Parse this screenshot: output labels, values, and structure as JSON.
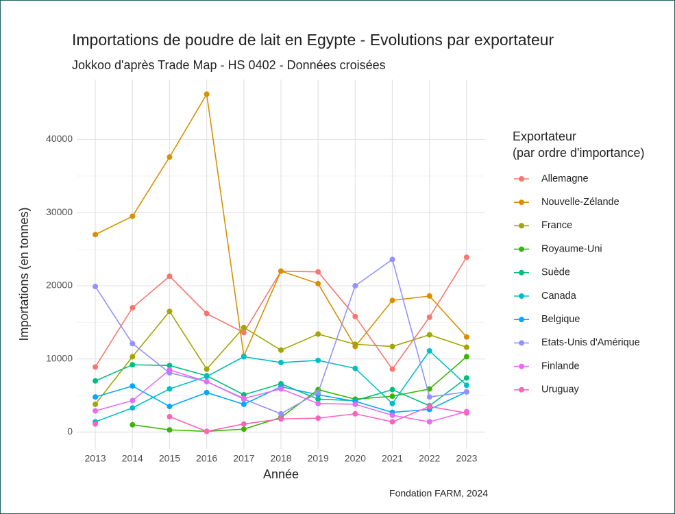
{
  "chart_data": {
    "type": "line",
    "title": "Importations de poudre de lait en Egypte - Evolutions par exportateur",
    "subtitle": "Jokkoo d'après Trade Map - HS 0402 - Données croisées",
    "x_label": "Année",
    "y_label": "Importations (en tonnes)",
    "caption": "Fondation FARM, 2024",
    "legend_title": [
      "Exportateur",
      "(par ordre d'importance)"
    ],
    "x": [
      2013,
      2014,
      2015,
      2016,
      2017,
      2018,
      2019,
      2020,
      2021,
      2022,
      2023
    ],
    "xlim": [
      2012.5,
      2023.5
    ],
    "xticks": [
      2013,
      2014,
      2015,
      2016,
      2017,
      2018,
      2019,
      2020,
      2021,
      2022,
      2023
    ],
    "ylim": [
      -2300,
      48200
    ],
    "yticks": [
      0,
      10000,
      20000,
      30000,
      40000
    ],
    "grid": true,
    "legend_position": "right",
    "series": [
      {
        "name": "Allemagne",
        "color": "#F8766D",
        "values": [
          8900,
          17000,
          21300,
          16200,
          13600,
          22000,
          21900,
          15800,
          8600,
          15700,
          23900
        ]
      },
      {
        "name": "Nouvelle-Zélande",
        "color": "#D89000",
        "values": [
          27000,
          29500,
          37600,
          46200,
          10400,
          22000,
          20300,
          11700,
          18000,
          18600,
          13000
        ]
      },
      {
        "name": "France",
        "color": "#A3A500",
        "values": [
          3800,
          10300,
          16500,
          8600,
          14300,
          11200,
          13400,
          12000,
          11700,
          13300,
          11600
        ]
      },
      {
        "name": "Royaume-Uni",
        "color": "#39B600",
        "values": [
          null,
          1000,
          300,
          100,
          400,
          2000,
          5800,
          4500,
          4900,
          5900,
          10300
        ]
      },
      {
        "name": "Suède",
        "color": "#00BF7D",
        "values": [
          7000,
          9200,
          9100,
          7700,
          5100,
          6600,
          4500,
          4300,
          5800,
          3600,
          7400
        ]
      },
      {
        "name": "Canada",
        "color": "#00BFC4",
        "values": [
          1400,
          3300,
          5900,
          7600,
          10300,
          9500,
          9800,
          8700,
          3900,
          11100,
          6400
        ]
      },
      {
        "name": "Belgique",
        "color": "#00A9FF",
        "values": [
          4800,
          6300,
          3500,
          5400,
          3800,
          6200,
          5100,
          4200,
          2700,
          3100,
          5500
        ]
      },
      {
        "name": "Etats-Unis d'Amérique",
        "color": "#9590FF",
        "values": [
          19900,
          12100,
          8100,
          6900,
          4500,
          2500,
          5400,
          20000,
          23600,
          4800,
          5500
        ]
      },
      {
        "name": "Finlande",
        "color": "#E76BF3",
        "values": [
          2900,
          4300,
          8500,
          6900,
          4600,
          5900,
          3900,
          3800,
          2300,
          1400,
          2800
        ]
      },
      {
        "name": "Uruguay",
        "color": "#FF62BC",
        "values": [
          1100,
          null,
          2100,
          100,
          1100,
          1800,
          1900,
          2500,
          1400,
          3500,
          2600
        ]
      }
    ]
  }
}
